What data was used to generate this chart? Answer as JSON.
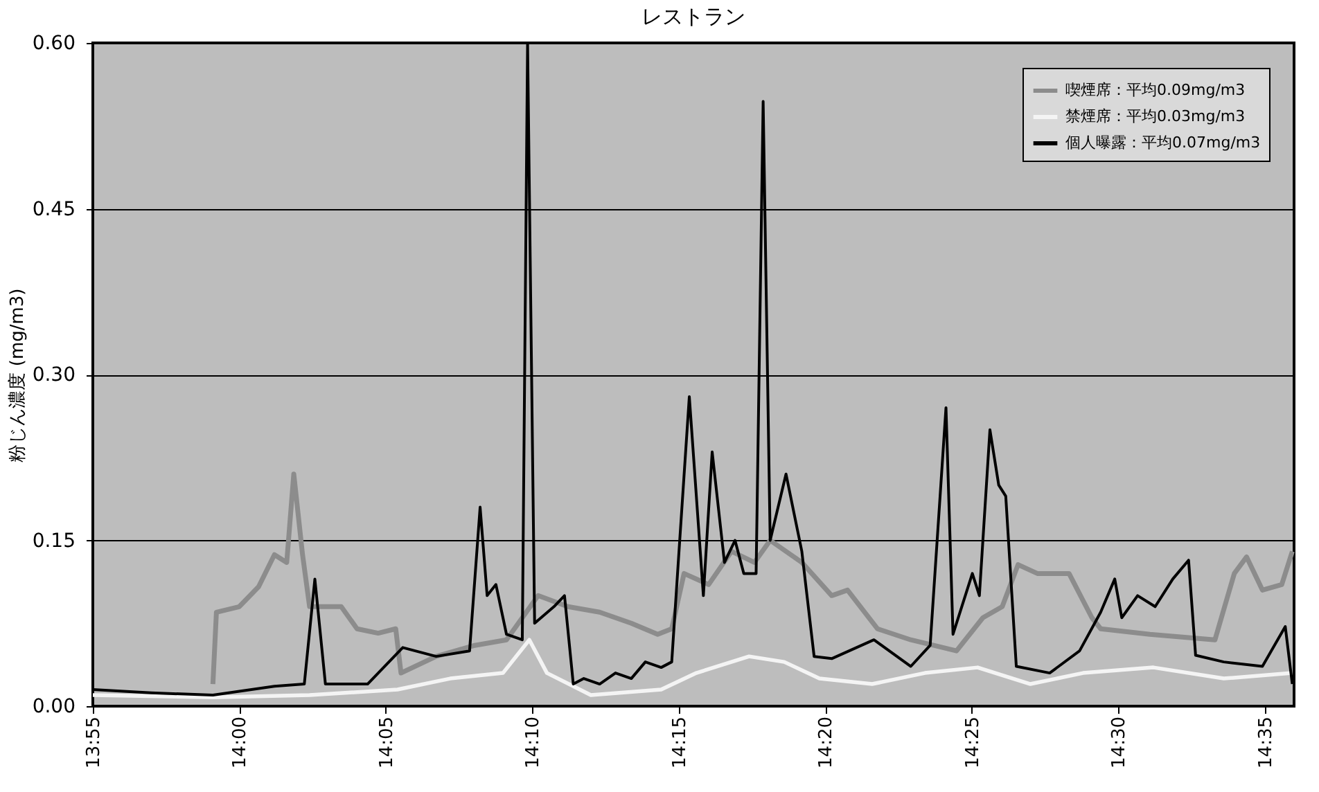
{
  "chart_data": {
    "type": "line",
    "title": "レストラン",
    "ylabel": "粉じん濃度 (mg/m3)",
    "xlim": [
      13.9167,
      14.6
    ],
    "xticks": [
      {
        "value": 13.9167,
        "label": "13:55"
      },
      {
        "value": 14.0,
        "label": "14:00"
      },
      {
        "value": 14.0833,
        "label": "14:05"
      },
      {
        "value": 14.1667,
        "label": "14:10"
      },
      {
        "value": 14.25,
        "label": "14:15"
      },
      {
        "value": 14.3333,
        "label": "14:20"
      },
      {
        "value": 14.4167,
        "label": "14:25"
      },
      {
        "value": 14.5,
        "label": "14:30"
      },
      {
        "value": 14.5833,
        "label": "14:35"
      }
    ],
    "ylim": [
      0,
      0.6
    ],
    "yticks": [
      {
        "value": 0,
        "label": "0.00"
      },
      {
        "value": 0.15,
        "label": "0.15"
      },
      {
        "value": 0.3,
        "label": "0.30"
      },
      {
        "value": 0.45,
        "label": "0.45"
      },
      {
        "value": 0.6,
        "label": "0.60"
      }
    ],
    "grid": "y",
    "legend": "top right",
    "marker": "none",
    "line_style": "solid",
    "series": [
      {
        "name": "喫煙席：平均0.09mg/m3",
        "color": "#8c8c8c",
        "x": [
          13.985,
          13.987,
          14.0,
          14.011,
          14.02,
          14.027,
          14.031,
          14.036,
          14.04,
          14.058,
          14.067,
          14.079,
          14.089,
          14.092,
          14.112,
          14.134,
          14.152,
          14.17,
          14.187,
          14.205,
          14.223,
          14.238,
          14.246,
          14.253,
          14.267,
          14.28,
          14.293,
          14.302,
          14.32,
          14.337,
          14.346,
          14.363,
          14.382,
          14.408,
          14.423,
          14.434,
          14.443,
          14.454,
          14.472,
          14.485,
          14.49,
          14.518,
          14.555,
          14.566,
          14.573,
          14.582,
          14.593,
          14.599
        ],
        "values": [
          0.02,
          0.085,
          0.09,
          0.108,
          0.137,
          0.13,
          0.21,
          0.137,
          0.09,
          0.09,
          0.07,
          0.066,
          0.07,
          0.03,
          0.045,
          0.055,
          0.06,
          0.1,
          0.09,
          0.085,
          0.075,
          0.065,
          0.07,
          0.12,
          0.11,
          0.14,
          0.13,
          0.15,
          0.13,
          0.1,
          0.105,
          0.07,
          0.06,
          0.05,
          0.08,
          0.09,
          0.128,
          0.12,
          0.12,
          0.08,
          0.07,
          0.065,
          0.06,
          0.12,
          0.135,
          0.105,
          0.11,
          0.14
        ]
      },
      {
        "name": "禁煙席：平均0.03mg/m3",
        "color": "#f4f4f4",
        "x": [
          13.9167,
          13.985,
          14.04,
          14.09,
          14.12,
          14.15,
          14.165,
          14.175,
          14.2,
          14.24,
          14.26,
          14.29,
          14.31,
          14.33,
          14.36,
          14.39,
          14.42,
          14.45,
          14.48,
          14.52,
          14.56,
          14.599
        ],
        "values": [
          0.01,
          0.008,
          0.01,
          0.015,
          0.025,
          0.03,
          0.06,
          0.03,
          0.01,
          0.015,
          0.03,
          0.045,
          0.04,
          0.025,
          0.02,
          0.03,
          0.035,
          0.02,
          0.03,
          0.035,
          0.025,
          0.03
        ]
      },
      {
        "name": "個人曝露：平均0.07mg/m3",
        "color": "#000000",
        "x": [
          13.9167,
          13.95,
          13.985,
          14.02,
          14.037,
          14.043,
          14.049,
          14.073,
          14.093,
          14.112,
          14.131,
          14.137,
          14.141,
          14.146,
          14.152,
          14.161,
          14.164,
          14.168,
          14.179,
          14.185,
          14.19,
          14.196,
          14.205,
          14.214,
          14.223,
          14.231,
          14.24,
          14.246,
          14.25,
          14.256,
          14.264,
          14.269,
          14.276,
          14.282,
          14.287,
          14.294,
          14.298,
          14.302,
          14.311,
          14.32,
          14.327,
          14.337,
          14.361,
          14.382,
          14.393,
          14.402,
          14.406,
          14.417,
          14.421,
          14.427,
          14.432,
          14.436,
          14.442,
          14.461,
          14.478,
          14.49,
          14.498,
          14.502,
          14.511,
          14.521,
          14.531,
          14.54,
          14.544,
          14.56,
          14.582,
          14.595,
          14.599
        ],
        "values": [
          0.015,
          0.012,
          0.01,
          0.018,
          0.02,
          0.115,
          0.02,
          0.02,
          0.053,
          0.045,
          0.05,
          0.18,
          0.1,
          0.11,
          0.065,
          0.06,
          0.6,
          0.075,
          0.09,
          0.1,
          0.02,
          0.025,
          0.02,
          0.03,
          0.025,
          0.04,
          0.035,
          0.04,
          0.137,
          0.28,
          0.1,
          0.23,
          0.13,
          0.15,
          0.12,
          0.12,
          0.547,
          0.15,
          0.21,
          0.14,
          0.045,
          0.043,
          0.06,
          0.036,
          0.055,
          0.27,
          0.065,
          0.12,
          0.1,
          0.25,
          0.2,
          0.19,
          0.036,
          0.03,
          0.05,
          0.085,
          0.115,
          0.08,
          0.1,
          0.09,
          0.115,
          0.132,
          0.046,
          0.04,
          0.036,
          0.072,
          0.02
        ]
      }
    ]
  }
}
